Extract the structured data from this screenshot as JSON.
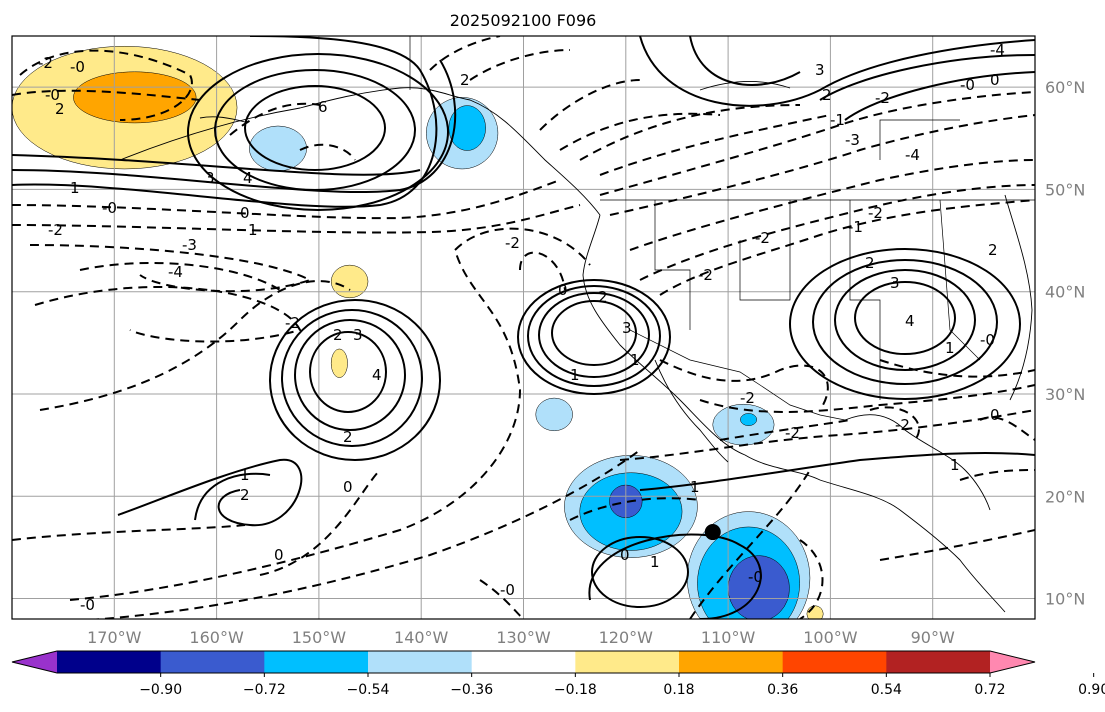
{
  "title": "2025092100 F096",
  "map": {
    "projection": "equirectangular",
    "lon_range": [
      -180,
      -80
    ],
    "lat_range": [
      8,
      65
    ],
    "lon_ticks": [
      {
        "value": -170,
        "label": "170°W"
      },
      {
        "value": -160,
        "label": "160°W"
      },
      {
        "value": -150,
        "label": "150°W"
      },
      {
        "value": -140,
        "label": "140°W"
      },
      {
        "value": -130,
        "label": "130°W"
      },
      {
        "value": -120,
        "label": "120°W"
      },
      {
        "value": -110,
        "label": "110°W"
      },
      {
        "value": -100,
        "label": "100°W"
      },
      {
        "value": -90,
        "label": "90°W"
      }
    ],
    "lat_ticks": [
      {
        "value": 10,
        "label": "10°N"
      },
      {
        "value": 20,
        "label": "20°N"
      },
      {
        "value": 30,
        "label": "30°N"
      },
      {
        "value": 40,
        "label": "40°N"
      },
      {
        "value": 50,
        "label": "50°N"
      },
      {
        "value": 60,
        "label": "60°N"
      }
    ],
    "gridlines": true,
    "marker": {
      "lon": -111.5,
      "lat": 16.5,
      "color": "#000000"
    }
  },
  "colorbar": {
    "orientation": "horizontal",
    "extend": "both",
    "colors": [
      "#9932cc",
      "#00008b",
      "#3a5bcf",
      "#00bfff",
      "#b0e0fa",
      "#ffffff",
      "#ffea8a",
      "#ffa500",
      "#ff4500",
      "#b22222",
      "#ff88b0"
    ],
    "tick_labels": [
      "−0.90",
      "−0.72",
      "−0.54",
      "−0.36",
      "−0.18",
      "0.18",
      "0.36",
      "0.54",
      "0.72",
      "0.90"
    ]
  },
  "contour_labels": [
    "0",
    "1",
    "2",
    "3",
    "4",
    "6",
    "-0",
    "-1",
    "-2",
    "-3",
    "-4"
  ],
  "shaded_regions": [
    {
      "lon": -169,
      "lat": 58,
      "rx": 11,
      "ry": 6,
      "color": "#ffea8a"
    },
    {
      "lon": -168,
      "lat": 59,
      "rx": 6,
      "ry": 2.5,
      "color": "#ffa500"
    },
    {
      "lon": -154,
      "lat": 54,
      "rx": 2.8,
      "ry": 2.2,
      "color": "#b0e0fa"
    },
    {
      "lon": -136,
      "lat": 55.5,
      "rx": 3.5,
      "ry": 3.5,
      "color": "#b0e0fa"
    },
    {
      "lon": -135.5,
      "lat": 56,
      "rx": 1.8,
      "ry": 2.2,
      "color": "#00bfff"
    },
    {
      "lon": -147,
      "lat": 41,
      "rx": 1.8,
      "ry": 1.6,
      "color": "#ffea8a"
    },
    {
      "lon": -148,
      "lat": 33,
      "rx": 0.8,
      "ry": 1.4,
      "color": "#ffea8a"
    },
    {
      "lon": -127,
      "lat": 28,
      "rx": 1.8,
      "ry": 1.6,
      "color": "#b0e0fa"
    },
    {
      "lon": -108.5,
      "lat": 27,
      "rx": 3,
      "ry": 2,
      "color": "#b0e0fa"
    },
    {
      "lon": -108,
      "lat": 27.5,
      "rx": 0.8,
      "ry": 0.6,
      "color": "#00bfff"
    },
    {
      "lon": -119.5,
      "lat": 19,
      "rx": 6.5,
      "ry": 5,
      "color": "#b0e0fa"
    },
    {
      "lon": -119.5,
      "lat": 18.5,
      "rx": 5,
      "ry": 3.8,
      "color": "#00bfff"
    },
    {
      "lon": -120,
      "lat": 19.5,
      "rx": 1.6,
      "ry": 1.6,
      "color": "#3a5bcf"
    },
    {
      "lon": -108,
      "lat": 12,
      "rx": 6,
      "ry": 6.5,
      "color": "#b0e0fa"
    },
    {
      "lon": -108,
      "lat": 11.5,
      "rx": 5,
      "ry": 5.5,
      "color": "#00bfff"
    },
    {
      "lon": -107,
      "lat": 11,
      "rx": 3,
      "ry": 3.2,
      "color": "#3a5bcf"
    },
    {
      "lon": -101.5,
      "lat": 8.5,
      "rx": 0.8,
      "ry": 0.8,
      "color": "#ffea8a"
    }
  ]
}
